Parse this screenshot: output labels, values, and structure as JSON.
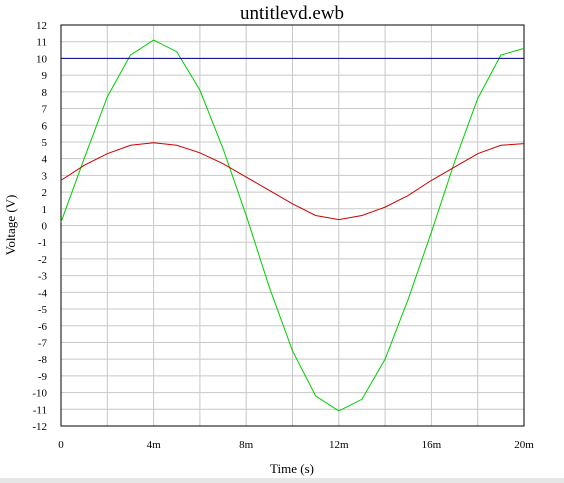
{
  "chart_data": {
    "type": "line",
    "title": "untitlevd.ewb",
    "xlabel": "Time (s)",
    "ylabel": "Voltage (V)",
    "xlim": [
      0,
      0.02
    ],
    "ylim": [
      -12,
      12
    ],
    "grid": true,
    "x_ticks": [
      {
        "value": 0,
        "label": "0"
      },
      {
        "value": 0.004,
        "label": "4m"
      },
      {
        "value": 0.008,
        "label": "8m"
      },
      {
        "value": 0.012,
        "label": "12m"
      },
      {
        "value": 0.016,
        "label": "16m"
      },
      {
        "value": 0.02,
        "label": "20m"
      }
    ],
    "x_minor_step": 0.002,
    "y_ticks": [
      -12,
      -11,
      -10,
      -9,
      -8,
      -7,
      -6,
      -5,
      -4,
      -3,
      -2,
      -1,
      0,
      1,
      2,
      3,
      4,
      5,
      6,
      7,
      8,
      9,
      10,
      11,
      12
    ],
    "series": [
      {
        "color": "#00cc00",
        "x": [
          0,
          0.001,
          0.002,
          0.003,
          0.004,
          0.005,
          0.006,
          0.007,
          0.008,
          0.009,
          0.01,
          0.011,
          0.012,
          0.013,
          0.014,
          0.015,
          0.016,
          0.017,
          0.018,
          0.019,
          0.02
        ],
        "y": [
          0.2,
          4.0,
          7.7,
          10.2,
          11.1,
          10.4,
          8.1,
          4.6,
          0.6,
          -3.7,
          -7.5,
          -10.2,
          -11.1,
          -10.4,
          -8.0,
          -4.4,
          -0.4,
          3.8,
          7.6,
          10.2,
          10.6
        ]
      },
      {
        "color": "#cc0000",
        "x": [
          0,
          0.001,
          0.002,
          0.003,
          0.004,
          0.005,
          0.006,
          0.007,
          0.008,
          0.009,
          0.01,
          0.011,
          0.012,
          0.013,
          0.014,
          0.015,
          0.016,
          0.017,
          0.018,
          0.019,
          0.02
        ],
        "y": [
          2.7,
          3.6,
          4.3,
          4.8,
          4.95,
          4.8,
          4.35,
          3.7,
          2.9,
          2.1,
          1.3,
          0.6,
          0.35,
          0.6,
          1.1,
          1.8,
          2.7,
          3.5,
          4.3,
          4.8,
          4.9
        ]
      },
      {
        "color": "#000080",
        "x": [
          0,
          0.02
        ],
        "y": [
          10,
          10
        ]
      }
    ]
  }
}
